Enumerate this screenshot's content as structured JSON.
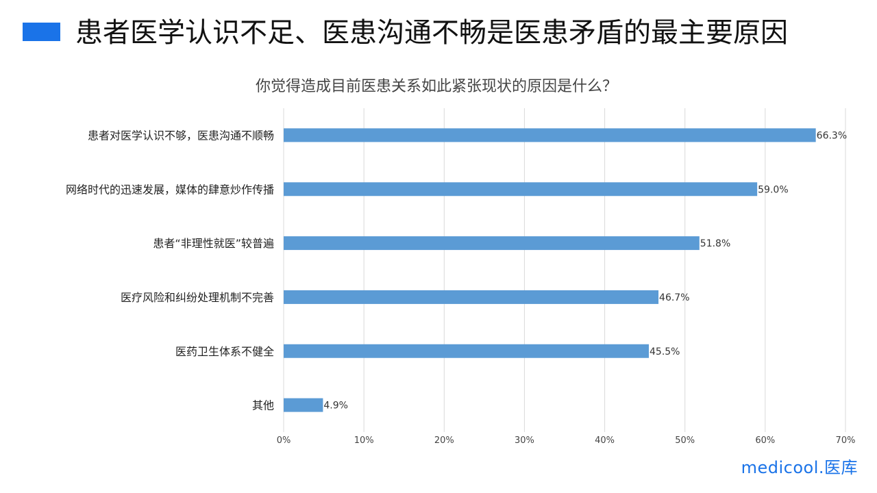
{
  "slide": {
    "title": "患者医学认识不足、医患沟通不畅是医患矛盾的最主要原因",
    "accent_color": "#1a73e8"
  },
  "logo": {
    "text": "medicool.医库"
  },
  "chart_data": {
    "type": "bar",
    "orientation": "horizontal",
    "title": "你觉得造成目前医患关系如此紧张现状的原因是什么？",
    "categories": [
      "患者对医学认识不够，医患沟通不顺畅",
      "网络时代的迅速发展，媒体的肆意炒作传播",
      "患者“非理性就医”较普遍",
      "医疗风险和纠纷处理机制不完善",
      "医药卫生体系不健全",
      "其他"
    ],
    "values": [
      66.3,
      59.0,
      51.8,
      46.7,
      45.5,
      4.9
    ],
    "data_labels": [
      "66.3%",
      "59.0%",
      "51.8%",
      "46.7%",
      "45.5%",
      "4.9%"
    ],
    "xlim": [
      0,
      70
    ],
    "xticks": [
      0,
      10,
      20,
      30,
      40,
      50,
      60,
      70
    ],
    "xtick_labels": [
      "0%",
      "10%",
      "20%",
      "30%",
      "40%",
      "50%",
      "60%",
      "70%"
    ],
    "grid": true,
    "bar_color": "#5b9bd5"
  }
}
